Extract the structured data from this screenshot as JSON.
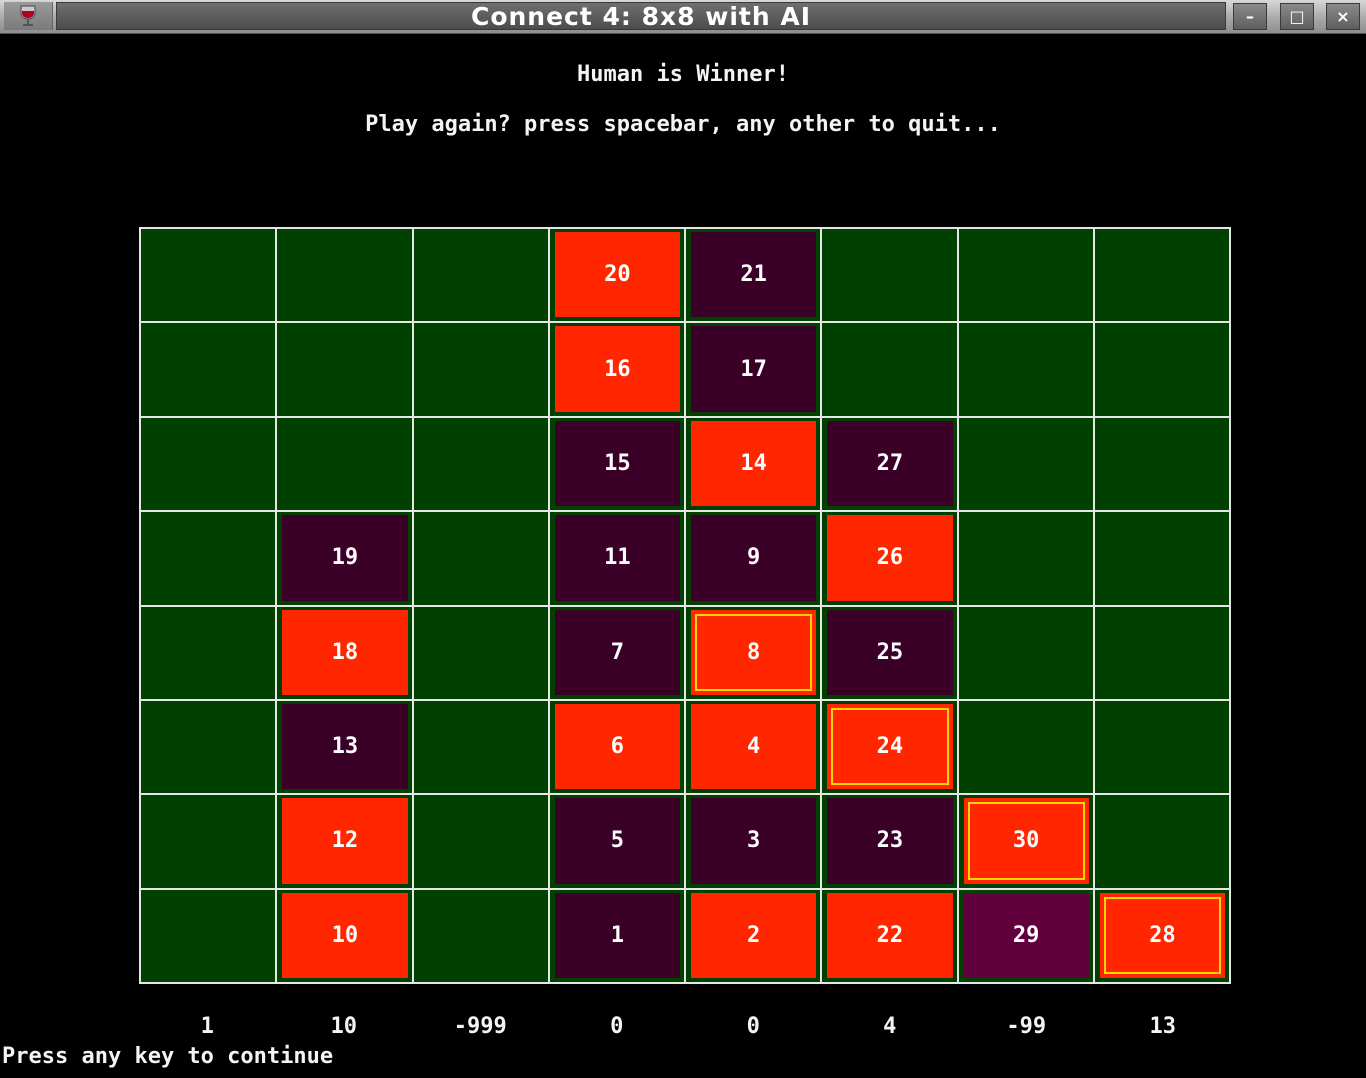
{
  "window": {
    "title": "Connect 4: 8x8 with AI",
    "app_icon": "wine-glass-icon",
    "minimize_label": "–",
    "maximize_label": "□",
    "close_label": "×"
  },
  "messages": {
    "winner": "Human is Winner!",
    "prompt": "Play again? press spacebar, any other to quit...",
    "continue": "Press any key to continue"
  },
  "colors": {
    "board": "#004000",
    "grid_lines": "#e6e6e6",
    "human_piece": "#ff2600",
    "ai_piece": "#3a0028",
    "last_ai_piece": "#62003e",
    "winning_outline": "#ffd700"
  },
  "board": {
    "rows": 8,
    "cols": 8,
    "cells": [
      [
        null,
        null,
        null,
        {
          "n": "20",
          "p": "human"
        },
        {
          "n": "21",
          "p": "ai"
        },
        null,
        null,
        null
      ],
      [
        null,
        null,
        null,
        {
          "n": "16",
          "p": "human"
        },
        {
          "n": "17",
          "p": "ai"
        },
        null,
        null,
        null
      ],
      [
        null,
        null,
        null,
        {
          "n": "15",
          "p": "ai"
        },
        {
          "n": "14",
          "p": "human"
        },
        {
          "n": "27",
          "p": "ai"
        },
        null,
        null
      ],
      [
        null,
        {
          "n": "19",
          "p": "ai"
        },
        null,
        {
          "n": "11",
          "p": "ai"
        },
        {
          "n": "9",
          "p": "ai"
        },
        {
          "n": "26",
          "p": "human"
        },
        null,
        null
      ],
      [
        null,
        {
          "n": "18",
          "p": "human"
        },
        null,
        {
          "n": "7",
          "p": "ai"
        },
        {
          "n": "8",
          "p": "human",
          "win": true
        },
        {
          "n": "25",
          "p": "ai"
        },
        null,
        null
      ],
      [
        null,
        {
          "n": "13",
          "p": "ai"
        },
        null,
        {
          "n": "6",
          "p": "human"
        },
        {
          "n": "4",
          "p": "human"
        },
        {
          "n": "24",
          "p": "human",
          "win": true
        },
        null,
        null
      ],
      [
        null,
        {
          "n": "12",
          "p": "human"
        },
        null,
        {
          "n": "5",
          "p": "ai"
        },
        {
          "n": "3",
          "p": "ai"
        },
        {
          "n": "23",
          "p": "ai"
        },
        {
          "n": "30",
          "p": "human",
          "win": true
        },
        null
      ],
      [
        null,
        {
          "n": "10",
          "p": "human"
        },
        null,
        {
          "n": "1",
          "p": "ai"
        },
        {
          "n": "2",
          "p": "human"
        },
        {
          "n": "22",
          "p": "human"
        },
        {
          "n": "29",
          "p": "ai",
          "last": true
        },
        {
          "n": "28",
          "p": "human",
          "win": true
        }
      ]
    ]
  },
  "column_scores": [
    "1",
    "10",
    "-999",
    "0",
    "0",
    "4",
    "-99",
    "13"
  ]
}
